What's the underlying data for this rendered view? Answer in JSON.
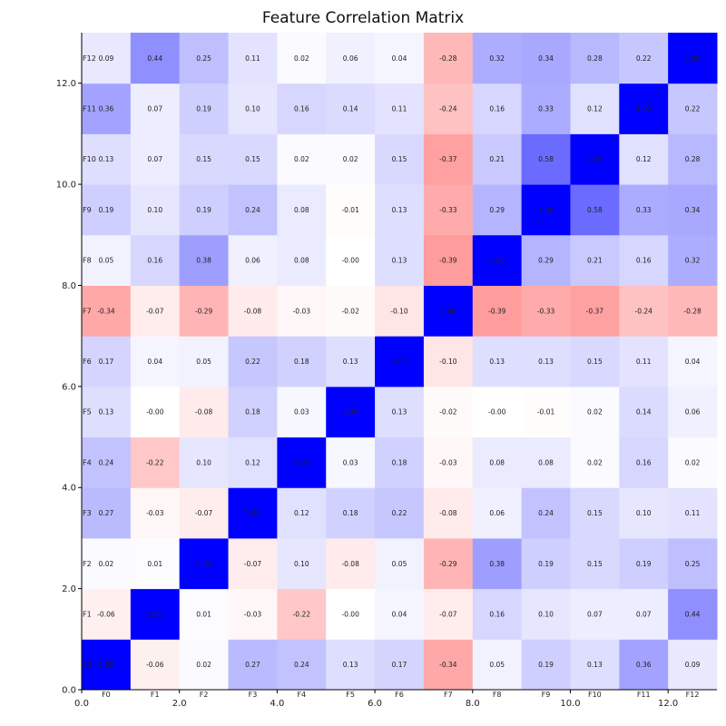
{
  "chart_data": {
    "type": "heatmap",
    "title": "Feature Correlation Matrix",
    "xlabel": "",
    "ylabel": "",
    "features": [
      "F0",
      "F1",
      "F2",
      "F3",
      "F4",
      "F5",
      "F6",
      "F7",
      "F8",
      "F9",
      "F10",
      "F11",
      "F12"
    ],
    "axis_ticks": [
      "0.0",
      "2.0",
      "4.0",
      "6.0",
      "8.0",
      "10.0",
      "12.0"
    ],
    "axis_tick_values": [
      0,
      2,
      4,
      6,
      8,
      10,
      12
    ],
    "xlim": [
      0,
      13
    ],
    "ylim": [
      0,
      13
    ],
    "color_scale": {
      "negative": "#ff0000",
      "zero": "#ffffff",
      "positive": "#0000ff",
      "vmin": -1,
      "vmax": 1
    },
    "grid": false,
    "matrix": [
      [
        1.0,
        -0.06,
        0.02,
        0.27,
        0.24,
        0.13,
        0.17,
        -0.34,
        0.05,
        0.19,
        0.13,
        0.36,
        0.09
      ],
      [
        -0.06,
        1.0,
        0.01,
        -0.03,
        -0.22,
        -0.0,
        0.04,
        -0.07,
        0.16,
        0.1,
        0.07,
        0.07,
        0.44
      ],
      [
        0.02,
        0.01,
        1.0,
        -0.07,
        0.1,
        -0.08,
        0.05,
        -0.29,
        0.38,
        0.19,
        0.15,
        0.19,
        0.25
      ],
      [
        0.27,
        -0.03,
        -0.07,
        1.0,
        0.12,
        0.18,
        0.22,
        -0.08,
        0.06,
        0.24,
        0.15,
        0.1,
        0.11
      ],
      [
        0.24,
        -0.22,
        0.1,
        0.12,
        1.0,
        0.03,
        0.18,
        -0.03,
        0.08,
        0.08,
        0.02,
        0.16,
        0.02
      ],
      [
        0.13,
        -0.0,
        -0.08,
        0.18,
        0.03,
        1.0,
        0.13,
        -0.02,
        -0.0,
        -0.01,
        0.02,
        0.14,
        0.06
      ],
      [
        0.17,
        0.04,
        0.05,
        0.22,
        0.18,
        0.13,
        1.0,
        -0.1,
        0.13,
        0.13,
        0.15,
        0.11,
        0.04
      ],
      [
        -0.34,
        -0.07,
        -0.29,
        -0.08,
        -0.03,
        -0.02,
        -0.1,
        1.0,
        -0.39,
        -0.33,
        -0.37,
        -0.24,
        -0.28
      ],
      [
        0.05,
        0.16,
        0.38,
        0.06,
        0.08,
        -0.0,
        0.13,
        -0.39,
        1.0,
        0.29,
        0.21,
        0.16,
        0.32
      ],
      [
        0.19,
        0.1,
        0.19,
        0.24,
        0.08,
        -0.01,
        0.13,
        -0.33,
        0.29,
        1.0,
        0.58,
        0.33,
        0.34
      ],
      [
        0.13,
        0.07,
        0.15,
        0.15,
        0.02,
        0.02,
        0.15,
        -0.37,
        0.21,
        0.58,
        1.0,
        0.12,
        0.28
      ],
      [
        0.36,
        0.07,
        0.19,
        0.1,
        0.16,
        0.14,
        0.11,
        -0.24,
        0.16,
        0.33,
        0.12,
        1.0,
        0.22
      ],
      [
        0.09,
        0.44,
        0.25,
        0.11,
        0.02,
        0.06,
        0.04,
        -0.28,
        0.32,
        0.34,
        0.28,
        0.22,
        1.0
      ]
    ]
  }
}
